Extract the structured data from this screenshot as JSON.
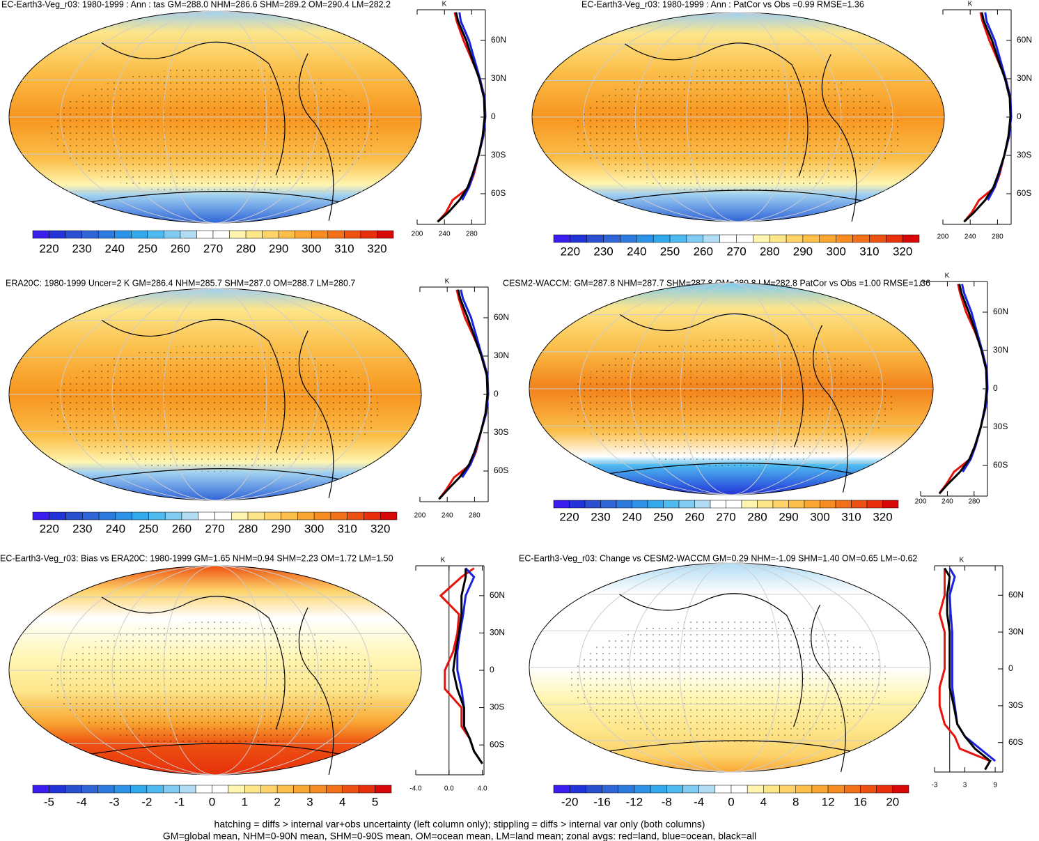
{
  "colorbar_colors": [
    "#3a1ef0",
    "#2233d8",
    "#2a4fd0",
    "#3065d8",
    "#2e7be0",
    "#2d93e8",
    "#31a9ec",
    "#4dbbf0",
    "#7fcbf2",
    "#b1dcf4",
    "#ffffff",
    "#ffffff",
    "#fff5b0",
    "#fde58a",
    "#fdd36a",
    "#fbbf4a",
    "#f9a632",
    "#f78c22",
    "#f3701a",
    "#ee5212",
    "#e8300c",
    "#d80808"
  ],
  "chart_data": [
    {
      "type": "line",
      "title": "EC-Earth3-Veg_r03: 1980-1999 : Ann : tas GM=288.0 NHM=286.6 SHM=289.2 OM=290.4 LM=282.2",
      "unit": "K",
      "y": [
        -82,
        -75,
        -65,
        -55,
        -45,
        -30,
        -15,
        0,
        15,
        30,
        45,
        60,
        75,
        82
      ],
      "ylim": [
        -84,
        84
      ],
      "yticks": [
        {
          "value": 60,
          "label": "60N"
        },
        {
          "value": 30,
          "label": "30N"
        },
        0,
        {
          "value": -30,
          "label": "30S"
        },
        {
          "value": -60,
          "label": "60S"
        }
      ],
      "xlim": [
        200,
        300
      ],
      "xticks": [
        200,
        240,
        280
      ],
      "series": [
        {
          "color": "#e8120c",
          "values": [
            230,
            242,
            252,
            276,
            283,
            290,
            297,
            299,
            299,
            292,
            280,
            268,
            258,
            255
          ]
        },
        {
          "color": "#1a22e0",
          "values": [
            null,
            null,
            266,
            276,
            282,
            290,
            297,
            300,
            299,
            292,
            284,
            276,
            264,
            262
          ]
        },
        {
          "color": "#000000",
          "values": [
            230,
            245,
            262,
            274,
            281,
            290,
            296,
            299,
            298,
            291,
            281,
            272,
            260,
            257
          ]
        }
      ],
      "colorbar_labels": [
        220,
        230,
        240,
        250,
        260,
        270,
        280,
        290,
        300,
        310,
        320
      ]
    },
    {
      "type": "line",
      "title": "EC-Earth3-Veg_r03: 1980-1999 : Ann : PatCor vs Obs =0.99 RMSE=1.36",
      "unit": "K",
      "y": [
        -82,
        -75,
        -65,
        -55,
        -45,
        -30,
        -15,
        0,
        15,
        30,
        45,
        60,
        75,
        82
      ],
      "ylim": [
        -84,
        84
      ],
      "yticks": [
        {
          "value": 60,
          "label": "60N"
        },
        {
          "value": 30,
          "label": "30N"
        },
        0,
        {
          "value": -30,
          "label": "30S"
        },
        {
          "value": -60,
          "label": "60S"
        }
      ],
      "xlim": [
        200,
        300
      ],
      "xticks": [
        200,
        240,
        280
      ],
      "series": [
        {
          "color": "#e8120c",
          "values": [
            231,
            242,
            253,
            276,
            283,
            290,
            297,
            299,
            299,
            292,
            280,
            268,
            258,
            255
          ]
        },
        {
          "color": "#1a22e0",
          "values": [
            null,
            null,
            266,
            276,
            282,
            290,
            297,
            300,
            299,
            292,
            284,
            276,
            264,
            262
          ]
        },
        {
          "color": "#000000",
          "values": [
            231,
            245,
            262,
            274,
            281,
            290,
            296,
            299,
            298,
            291,
            281,
            272,
            260,
            257
          ]
        }
      ],
      "colorbar_labels": [
        220,
        230,
        240,
        250,
        260,
        270,
        280,
        290,
        300,
        310,
        320
      ]
    },
    {
      "type": "line",
      "title": "ERA20C: 1980-1999 Uncer=2 K GM=286.4 NHM=285.7 SHM=287.0 OM=288.7 LM=280.7",
      "unit": "K",
      "y": [
        -82,
        -75,
        -65,
        -55,
        -45,
        -30,
        -15,
        0,
        15,
        30,
        45,
        60,
        75,
        82
      ],
      "ylim": [
        -84,
        84
      ],
      "yticks": [
        {
          "value": 60,
          "label": "60N"
        },
        {
          "value": 30,
          "label": "30N"
        },
        0,
        {
          "value": -30,
          "label": "30S"
        },
        {
          "value": -60,
          "label": "60S"
        }
      ],
      "xlim": [
        200,
        300
      ],
      "xticks": [
        200,
        240,
        280
      ],
      "series": [
        {
          "color": "#e8120c",
          "values": [
            228,
            238,
            250,
            274,
            282,
            289,
            297,
            299,
            299,
            291,
            279,
            266,
            257,
            254
          ]
        },
        {
          "color": "#1a22e0",
          "values": [
            null,
            null,
            262,
            274,
            281,
            289,
            297,
            300,
            299,
            291,
            283,
            275,
            263,
            260
          ]
        },
        {
          "color": "#000000",
          "values": [
            228,
            240,
            258,
            272,
            280,
            289,
            296,
            299,
            298,
            290,
            280,
            270,
            259,
            256
          ]
        }
      ],
      "colorbar_labels": [
        220,
        230,
        240,
        250,
        260,
        270,
        280,
        290,
        300,
        310,
        320
      ]
    },
    {
      "type": "line",
      "title": "CESM2-WACCM: GM=287.8 NHM=287.7 SHM=287.8 OM=289.8 LM=282.8 PatCor vs Obs =1.00 RMSE=1.36",
      "unit": "K",
      "y": [
        -82,
        -75,
        -65,
        -55,
        -45,
        -30,
        -15,
        0,
        15,
        30,
        45,
        60,
        75,
        82
      ],
      "ylim": [
        -84,
        84
      ],
      "yticks": [
        {
          "value": 60,
          "label": "60N"
        },
        {
          "value": 30,
          "label": "30N"
        },
        0,
        {
          "value": -30,
          "label": "30S"
        },
        {
          "value": -60,
          "label": "60S"
        }
      ],
      "xlim": [
        200,
        300
      ],
      "xticks": [
        200,
        240,
        280
      ],
      "series": [
        {
          "color": "#e8120c",
          "values": [
            228,
            238,
            250,
            274,
            282,
            290,
            297,
            299,
            299,
            292,
            281,
            268,
            259,
            256
          ]
        },
        {
          "color": "#1a22e0",
          "values": [
            null,
            null,
            263,
            275,
            282,
            290,
            297,
            300,
            299,
            292,
            284,
            276,
            265,
            262
          ]
        },
        {
          "color": "#000000",
          "values": [
            228,
            240,
            259,
            273,
            281,
            290,
            296,
            299,
            298,
            291,
            282,
            272,
            261,
            258
          ]
        }
      ],
      "colorbar_labels": [
        220,
        230,
        240,
        250,
        260,
        270,
        280,
        290,
        300,
        310,
        320
      ]
    },
    {
      "type": "line",
      "title": "EC-Earth3-Veg_r03: Bias vs ERA20C: 1980-1999 GM=1.65 NHM=0.94 SHM=2.23 OM=1.72 LM=1.50",
      "unit": "K",
      "y": [
        -82,
        -75,
        -65,
        -55,
        -45,
        -30,
        -15,
        0,
        15,
        30,
        45,
        60,
        75,
        82
      ],
      "ylim": [
        -84,
        84
      ],
      "yticks": [
        {
          "value": 60,
          "label": "60N"
        },
        {
          "value": 30,
          "label": "30N"
        },
        0,
        {
          "value": -30,
          "label": "30S"
        },
        {
          "value": -60,
          "label": "60S"
        }
      ],
      "xlim": [
        -4,
        4.2
      ],
      "xticks": [
        {
          "value": -4,
          "label": "-4.0"
        },
        {
          "value": 0,
          "label": "0.0"
        },
        {
          "value": 4,
          "label": "4.0"
        }
      ],
      "zero_line": true,
      "series": [
        {
          "color": "#e8120c",
          "values": [
            null,
            4,
            3,
            2.5,
            1.5,
            1.5,
            -0.5,
            -0.5,
            0.5,
            1,
            1.2,
            -1,
            1.5,
            3
          ]
        },
        {
          "color": "#1a22e0",
          "values": [
            null,
            4,
            3,
            2.5,
            1.8,
            1.8,
            1.5,
            1,
            1,
            1.3,
            1.7,
            2,
            3,
            2
          ]
        },
        {
          "color": "#000000",
          "values": [
            null,
            4,
            3,
            2.5,
            1.8,
            1.8,
            1,
            0.5,
            0.8,
            1.2,
            1.5,
            1.5,
            2,
            2
          ]
        }
      ],
      "colorbar_labels": [
        -5,
        -4,
        -3,
        -2,
        -1,
        0,
        1,
        2,
        3,
        4,
        5
      ]
    },
    {
      "type": "line",
      "title": "EC-Earth3-Veg_r03: Change vs CESM2-WACCM GM=0.29 NHM=-1.09 SHM=1.40 OM=0.65 LM=-0.62",
      "unit": "K",
      "y": [
        -82,
        -75,
        -65,
        -55,
        -45,
        -30,
        -15,
        0,
        15,
        30,
        45,
        60,
        75,
        82
      ],
      "ylim": [
        -84,
        84
      ],
      "yticks": [
        {
          "value": 60,
          "label": "60N"
        },
        {
          "value": 30,
          "label": "30N"
        },
        0,
        {
          "value": -30,
          "label": "30S"
        },
        {
          "value": -60,
          "label": "60S"
        }
      ],
      "xlim": [
        -3,
        10.5
      ],
      "xticks": [
        -3,
        3,
        9
      ],
      "zero_line": true,
      "series": [
        {
          "color": "#e8120c",
          "values": [
            7,
            8,
            2,
            1,
            -1,
            -2,
            -2,
            -1,
            -1,
            -1,
            -2,
            -1,
            -1,
            -1
          ]
        },
        {
          "color": "#1a22e0",
          "values": [
            null,
            9,
            6,
            3,
            1.5,
            1,
            0.5,
            0.5,
            0.5,
            0.5,
            0.2,
            0,
            1,
            0
          ]
        },
        {
          "color": "#000000",
          "values": [
            7,
            8,
            5,
            3,
            1.5,
            0.8,
            0,
            0,
            0,
            0,
            -0.5,
            -0.5,
            0,
            -1
          ]
        }
      ],
      "colorbar_labels": [
        -20,
        -16,
        -12,
        -8,
        -4,
        0,
        4,
        8,
        12,
        16,
        20
      ]
    }
  ],
  "footer": [
    "hatching = diffs > internal var+obs uncertainty (left column only); stippling = diffs > internal var only (both columns)",
    "GM=global mean, NHM=0-90N mean, SHM=0-90S mean, OM=ocean mean, LM=land mean; zonal avgs: red=land, blue=ocean, black=all"
  ]
}
